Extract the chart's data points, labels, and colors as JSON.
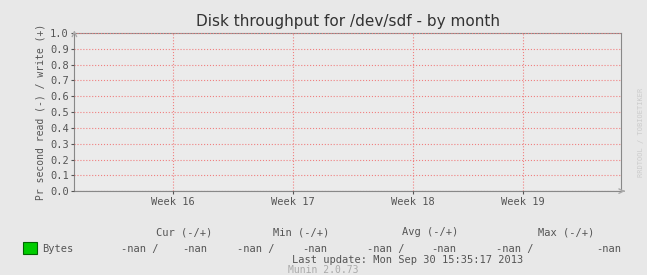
{
  "title": "Disk throughput for /dev/sdf - by month",
  "ylabel": "Pr second read (-) / write (+)",
  "ylim": [
    0.0,
    1.0
  ],
  "yticks": [
    0.0,
    0.1,
    0.2,
    0.3,
    0.4,
    0.5,
    0.6,
    0.7,
    0.8,
    0.9,
    1.0
  ],
  "xtick_labels": [
    "Week 16",
    "Week 17",
    "Week 18",
    "Week 19"
  ],
  "xtick_positions": [
    0.18,
    0.4,
    0.62,
    0.82
  ],
  "xlim": [
    0.0,
    1.0
  ],
  "bg_color": "#e8e8e8",
  "plot_bg_color": "#ebebeb",
  "grid_color": "#f08080",
  "axis_color": "#888888",
  "title_color": "#333333",
  "label_color": "#555555",
  "legend_color": "#00cc00",
  "legend_edge_color": "#006600",
  "watermark_text": "RRDTOOL / TOBIOETIKER",
  "watermark_color": "#cccccc",
  "legend_label": "Bytes",
  "cur_label": "Cur (-/+)",
  "min_label": "Min (-/+)",
  "avg_label": "Avg (-/+)",
  "max_label": "Max (-/+)",
  "bytes_cur": "-nan /",
  "bytes_cur2": "-nan",
  "bytes_min": "-nan /",
  "bytes_min2": "-nan",
  "bytes_avg": "-nan /",
  "bytes_avg2": "-nan",
  "bytes_max": "-nan /",
  "bytes_max2": "-nan",
  "last_update": "Last update: Mon Sep 30 15:35:17 2013",
  "munin_version": "Munin 2.0.73",
  "arrow_color": "#aaaaaa",
  "font_size_ticks": 7.5,
  "font_size_title": 11,
  "font_size_legend": 7.5,
  "font_size_munin": 7
}
